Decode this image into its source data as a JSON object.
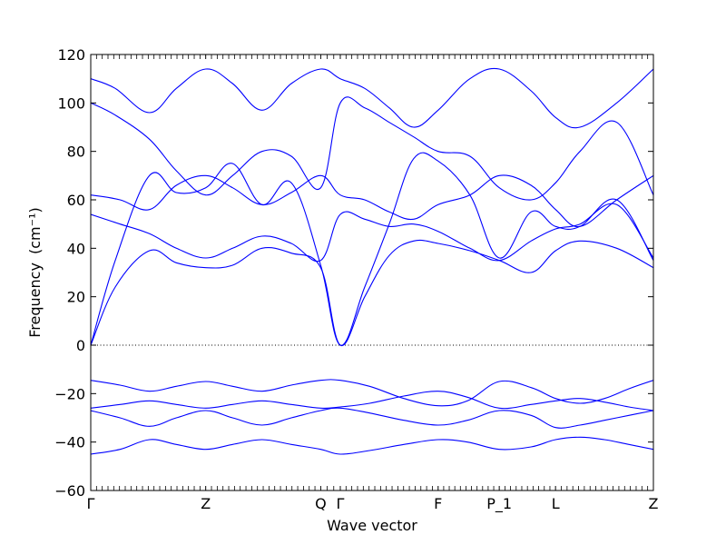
{
  "chart_data": {
    "type": "line",
    "title": "",
    "xlabel": "Wave vector",
    "ylabel": "Frequency",
    "ylabel_unit": "(cm⁻¹)",
    "ylim": [
      -60,
      120
    ],
    "yticks": [
      -60,
      -40,
      -20,
      0,
      20,
      40,
      60,
      80,
      100,
      120
    ],
    "ytick_labels": [
      "−60",
      "−40",
      "−20",
      "0",
      "20",
      "40",
      "60",
      "80",
      "100",
      "120"
    ],
    "xlim": [
      0,
      2.3
    ],
    "special_points": [
      {
        "label": "Γ",
        "x": 0.0
      },
      {
        "label": "Z",
        "x": 0.47
      },
      {
        "label": "Q",
        "x": 0.94
      },
      {
        "label": "Γ",
        "x": 1.02
      },
      {
        "label": "F",
        "x": 1.42
      },
      {
        "label": "P_1",
        "x": 1.67
      },
      {
        "label": "L",
        "x": 1.9
      },
      {
        "label": "Z",
        "x": 2.3
      }
    ],
    "zero_line": true,
    "grid": false,
    "line_color": "#0000ff",
    "series": [
      {
        "x": [
          0,
          0.12,
          0.24,
          0.35,
          0.47,
          0.58,
          0.7,
          0.82,
          0.94,
          1.02,
          1.14,
          1.28,
          1.42,
          1.54,
          1.67,
          1.8,
          1.9,
          2.0,
          2.1,
          2.2,
          2.3
        ],
        "values": [
          -45,
          -43,
          -39,
          -41,
          -43,
          -41,
          -39,
          -41,
          -43,
          -45,
          -43.5,
          -41,
          -39,
          -40,
          -43,
          -42,
          -39,
          -38,
          -39,
          -41,
          -43
        ]
      },
      {
        "x": [
          0,
          0.12,
          0.24,
          0.35,
          0.47,
          0.58,
          0.7,
          0.82,
          0.94,
          1.02,
          1.14,
          1.28,
          1.42,
          1.54,
          1.67,
          1.8,
          1.9,
          2.0,
          2.1,
          2.2,
          2.3
        ],
        "values": [
          -27,
          -30,
          -33.5,
          -30,
          -27,
          -30,
          -33,
          -30,
          -27,
          -26,
          -28,
          -31,
          -33,
          -31,
          -27,
          -29,
          -34,
          -33,
          -31,
          -29,
          -27
        ]
      },
      {
        "x": [
          0,
          0.12,
          0.24,
          0.35,
          0.47,
          0.58,
          0.7,
          0.82,
          0.94,
          1.02,
          1.14,
          1.28,
          1.42,
          1.54,
          1.67,
          1.8,
          1.9,
          2.0,
          2.1,
          2.2,
          2.3
        ],
        "values": [
          -26,
          -24.5,
          -23,
          -24.5,
          -26,
          -24.5,
          -23,
          -24.5,
          -26,
          -25.5,
          -24,
          -21,
          -19,
          -21.5,
          -26,
          -24.5,
          -23,
          -22,
          -23.5,
          -25.5,
          -27
        ]
      },
      {
        "x": [
          0,
          0.12,
          0.24,
          0.35,
          0.47,
          0.58,
          0.7,
          0.82,
          0.94,
          1.02,
          1.14,
          1.28,
          1.42,
          1.54,
          1.67,
          1.8,
          1.9,
          2.0,
          2.1,
          2.2,
          2.3
        ],
        "values": [
          -14.5,
          -16.5,
          -19,
          -17,
          -15,
          -17,
          -19,
          -16.5,
          -14.5,
          -14.5,
          -17,
          -22,
          -25,
          -23,
          -15,
          -17.5,
          -22,
          -24,
          -22,
          -18,
          -14.5
        ]
      },
      {
        "x": [
          0,
          0.1,
          0.24,
          0.35,
          0.47,
          0.58,
          0.7,
          0.82,
          0.94,
          1.02,
          1.12,
          1.22,
          1.32,
          1.42,
          1.55,
          1.67,
          1.8,
          1.9,
          2.0,
          2.15,
          2.3
        ],
        "values": [
          0,
          24,
          39,
          34,
          32,
          33,
          40,
          38,
          32,
          0,
          20,
          37,
          43,
          42,
          39,
          35,
          30,
          39,
          43,
          40,
          32
        ]
      },
      {
        "x": [
          0,
          0.1,
          0.24,
          0.35,
          0.47,
          0.58,
          0.7,
          0.82,
          0.94,
          1.02,
          1.12,
          1.22,
          1.32,
          1.42,
          1.55,
          1.67,
          1.8,
          1.9,
          2.0,
          2.15,
          2.3
        ],
        "values": [
          0,
          35,
          70,
          63,
          65,
          75,
          58,
          67,
          33,
          0,
          24,
          50,
          77,
          76,
          62,
          36,
          55,
          49,
          49,
          60,
          35
        ]
      },
      {
        "x": [
          0,
          0.12,
          0.24,
          0.35,
          0.47,
          0.58,
          0.7,
          0.82,
          0.94,
          1.02,
          1.12,
          1.22,
          1.32,
          1.42,
          1.55,
          1.67,
          1.8,
          1.9,
          2.0,
          2.15,
          2.3
        ],
        "values": [
          54,
          50,
          46,
          40,
          36,
          40,
          45,
          42,
          35,
          54,
          52,
          49,
          50,
          47,
          40,
          35,
          43,
          48,
          50,
          58,
          36
        ]
      },
      {
        "x": [
          0,
          0.12,
          0.24,
          0.35,
          0.47,
          0.58,
          0.7,
          0.82,
          0.94,
          1.02,
          1.12,
          1.22,
          1.32,
          1.42,
          1.55,
          1.67,
          1.8,
          1.9,
          2.0,
          2.15,
          2.3
        ],
        "values": [
          62,
          60,
          56,
          66,
          70,
          65,
          58,
          63,
          70,
          62,
          60,
          55,
          52,
          58,
          62,
          70,
          66,
          56,
          49,
          60,
          70
        ]
      },
      {
        "x": [
          0,
          0.1,
          0.24,
          0.35,
          0.47,
          0.58,
          0.7,
          0.82,
          0.94,
          1.02,
          1.12,
          1.22,
          1.32,
          1.42,
          1.55,
          1.67,
          1.8,
          1.9,
          2.0,
          2.15,
          2.3
        ],
        "values": [
          100,
          95,
          85,
          72,
          62,
          70,
          80,
          78,
          65,
          100,
          98,
          92,
          86,
          80,
          78,
          65,
          60,
          67,
          80,
          92,
          62
        ]
      },
      {
        "x": [
          0,
          0.1,
          0.24,
          0.35,
          0.47,
          0.58,
          0.7,
          0.82,
          0.94,
          1.02,
          1.12,
          1.22,
          1.32,
          1.42,
          1.55,
          1.67,
          1.8,
          1.9,
          2.0,
          2.15,
          2.3
        ],
        "values": [
          110,
          106,
          96,
          106,
          114,
          108,
          97,
          108,
          114,
          110,
          106,
          98,
          90,
          97,
          110,
          114,
          105,
          94,
          90,
          100,
          114
        ]
      }
    ]
  }
}
